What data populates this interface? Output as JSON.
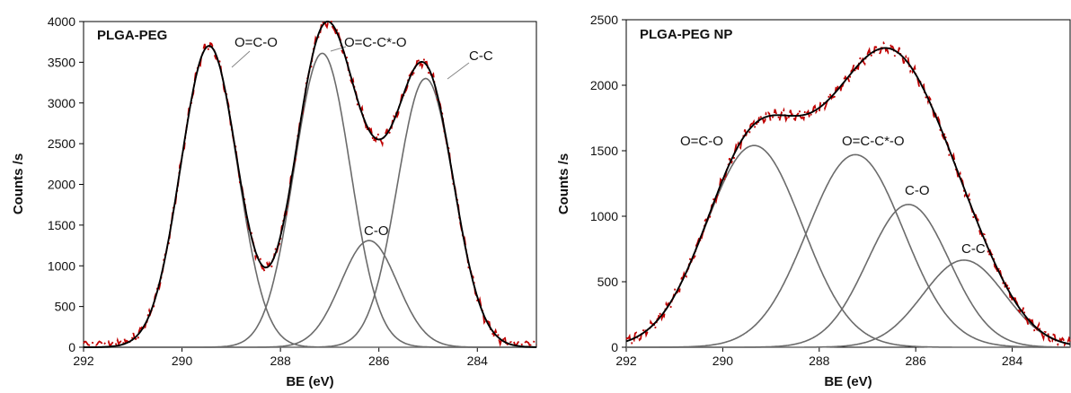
{
  "chart_data": [
    {
      "type": "line",
      "title": "PLGA-PEG",
      "xlabel": "BE (eV)",
      "ylabel": "Counts /s",
      "xlim": [
        292,
        282.8
      ],
      "ylim": [
        0,
        4000
      ],
      "x_reversed": true,
      "xticks": [
        "292",
        "290",
        "288",
        "286",
        "284"
      ],
      "yticks": [
        "0",
        "500",
        "1000",
        "1500",
        "2000",
        "2500",
        "3000",
        "3500",
        "4000"
      ],
      "components": [
        {
          "name": "O=C-O",
          "center": 289.45,
          "amplitude": 3700,
          "fwhm": 1.35
        },
        {
          "name": "O=C-C*-O",
          "center": 287.15,
          "amplitude": 3610,
          "fwhm": 1.35
        },
        {
          "name": "C-O",
          "center": 286.2,
          "amplitude": 1310,
          "fwhm": 1.35
        },
        {
          "name": "C-C",
          "center": 285.05,
          "amplitude": 3300,
          "fwhm": 1.35
        }
      ],
      "annotations": [
        "O=C-O",
        "O=C-C*-O",
        "C-O",
        "C-C"
      ],
      "fit": {
        "color": "#000000"
      },
      "measured": {
        "color": "#c00000",
        "style": "dash-dot"
      }
    },
    {
      "type": "line",
      "title": "PLGA-PEG NP",
      "xlabel": "BE (eV)",
      "ylabel": "Counts /s",
      "xlim": [
        292,
        282.8
      ],
      "ylim": [
        0,
        2500
      ],
      "x_reversed": true,
      "xticks": [
        "292",
        "290",
        "288",
        "286",
        "284"
      ],
      "yticks": [
        "0",
        "500",
        "1000",
        "1500",
        "2000",
        "2500"
      ],
      "components": [
        {
          "name": "O=C-O",
          "center": 289.35,
          "amplitude": 1540,
          "fwhm": 2.35
        },
        {
          "name": "O=C-C*-O",
          "center": 287.25,
          "amplitude": 1470,
          "fwhm": 2.35
        },
        {
          "name": "C-O",
          "center": 286.15,
          "amplitude": 1090,
          "fwhm": 2.0
        },
        {
          "name": "C-C",
          "center": 285.0,
          "amplitude": 665,
          "fwhm": 2.0
        }
      ],
      "annotations": [
        "O=C-O",
        "O=C-C*-O",
        "C-O",
        "C-C"
      ],
      "fit": {
        "color": "#000000"
      },
      "measured": {
        "color": "#c00000",
        "style": "dash-dot"
      }
    }
  ]
}
